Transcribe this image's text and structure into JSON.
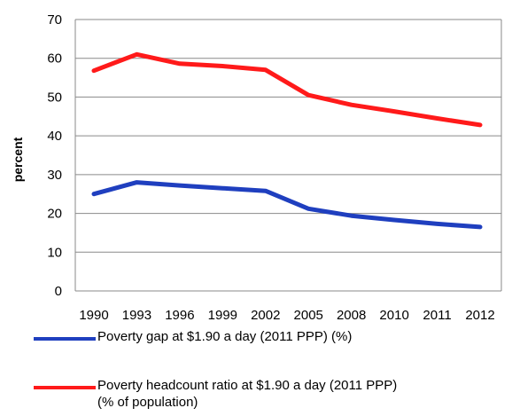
{
  "chart_data": {
    "type": "line",
    "title": "",
    "xlabel": "",
    "ylabel": "percent",
    "x": [
      "1990",
      "1993",
      "1996",
      "1999",
      "2002",
      "2005",
      "2008",
      "2010",
      "2011",
      "2012"
    ],
    "ylim": [
      0,
      70
    ],
    "yticks": [
      0,
      10,
      20,
      30,
      40,
      50,
      60,
      70
    ],
    "grid": true,
    "legend_position": "bottom",
    "series": [
      {
        "name": "Poverty gap at $1.90 a day (2011 PPP) (%)",
        "color": "#1f3fbf",
        "values": [
          25.0,
          28.0,
          27.2,
          26.5,
          25.8,
          21.2,
          19.4,
          18.3,
          17.3,
          16.5
        ]
      },
      {
        "name": "Poverty headcount ratio at $1.90 a day (2011 PPP) (% of population)",
        "color": "#ff1a1a",
        "values": [
          56.8,
          61.0,
          58.6,
          58.0,
          57.0,
          50.5,
          48.0,
          46.3,
          44.5,
          42.8
        ]
      }
    ]
  },
  "legend": {
    "item1_line1": "Poverty gap at $1.90 a day (2011 PPP) (%)",
    "item2_line1": "Poverty headcount ratio at $1.90 a day (2011 PPP)",
    "item2_line2": "(% of population)"
  }
}
